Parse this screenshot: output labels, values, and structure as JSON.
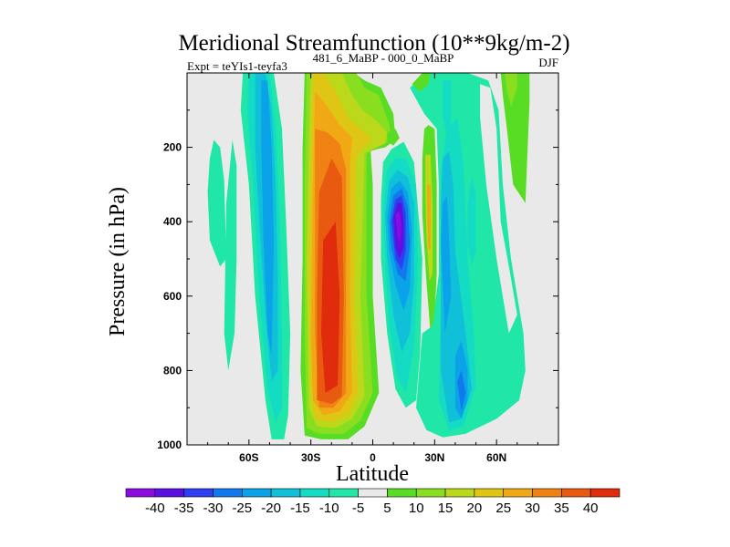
{
  "chart_data": {
    "type": "heatmap",
    "title": "Meridional Streamfunction (10**9kg/m-2)",
    "experiment_label": "Expt = teYIs1-teyfa3",
    "difference_label": "481_6_MaBP - 000_0_MaBP",
    "season": "DJF",
    "xlabel": "Latitude",
    "ylabel": "Pressure (in hPa)",
    "xlim": [
      -90,
      90
    ],
    "ylim": [
      1000,
      0
    ],
    "x_ticks": [
      -60,
      -30,
      0,
      30,
      60
    ],
    "x_tick_labels": [
      "60S",
      "30S",
      "0",
      "30N",
      "60N"
    ],
    "y_ticks": [
      200,
      400,
      600,
      800,
      1000
    ],
    "y_tick_labels": [
      "200",
      "400",
      "600",
      "800",
      "1000"
    ],
    "colorbar": {
      "levels": [
        -40,
        -35,
        -30,
        -25,
        -20,
        -15,
        -10,
        -5,
        5,
        10,
        15,
        20,
        25,
        30,
        35,
        40
      ],
      "labels": [
        "-40",
        "-35",
        "-30",
        "-25",
        "-20",
        "-15",
        "-10",
        "-5",
        "5",
        "10",
        "15",
        "20",
        "25",
        "30",
        "35",
        "40"
      ],
      "colors": [
        "#8a0ae0",
        "#5a10e0",
        "#2e3ef0",
        "#1178ee",
        "#0aa2e8",
        "#10c0d8",
        "#14dcc4",
        "#20e6a8",
        "#e9e9e9",
        "#58dc24",
        "#8ade20",
        "#bcd81a",
        "#dfc614",
        "#f0a814",
        "#f08214",
        "#e85a10",
        "#e02c0c"
      ]
    },
    "features": [
      {
        "name": "southern-hemisphere-positive-cell",
        "lat_range": [
          -35,
          5
        ],
        "p_range": [
          970,
          0
        ],
        "peak": 40
      },
      {
        "name": "tropical-negative-cell",
        "lat_range": [
          0,
          25
        ],
        "p_range": [
          900,
          180
        ],
        "peak": -40
      },
      {
        "name": "upper-positive-lobe-30N",
        "lat_range": [
          20,
          30
        ],
        "p_range": [
          700,
          150
        ],
        "peak": 30
      },
      {
        "name": "upper-positive-lobe-70N",
        "lat_range": [
          62,
          76
        ],
        "p_range": [
          350,
          0
        ],
        "peak": 10
      }
    ]
  }
}
